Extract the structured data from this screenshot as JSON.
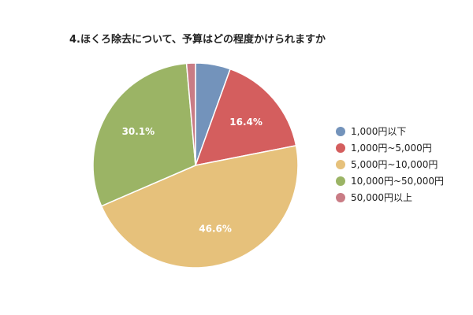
{
  "chart_data": {
    "type": "pie",
    "title": "4.ほくろ除去について、予算はどの程度かけられますか",
    "labels": [
      "1,000円以下",
      "1,000円~5,000円",
      "5,000円~10,000円",
      "10,000円~50,000円",
      "50,000円以上"
    ],
    "values": [
      5.5,
      16.4,
      46.6,
      30.1,
      1.4
    ],
    "value_labels": [
      "",
      "16.4%",
      "46.6%",
      "30.1%",
      ""
    ],
    "colors": [
      "#7393bb",
      "#d45e5e",
      "#e6c17b",
      "#9bb465",
      "#c97c85"
    ],
    "legend_position": "right"
  }
}
